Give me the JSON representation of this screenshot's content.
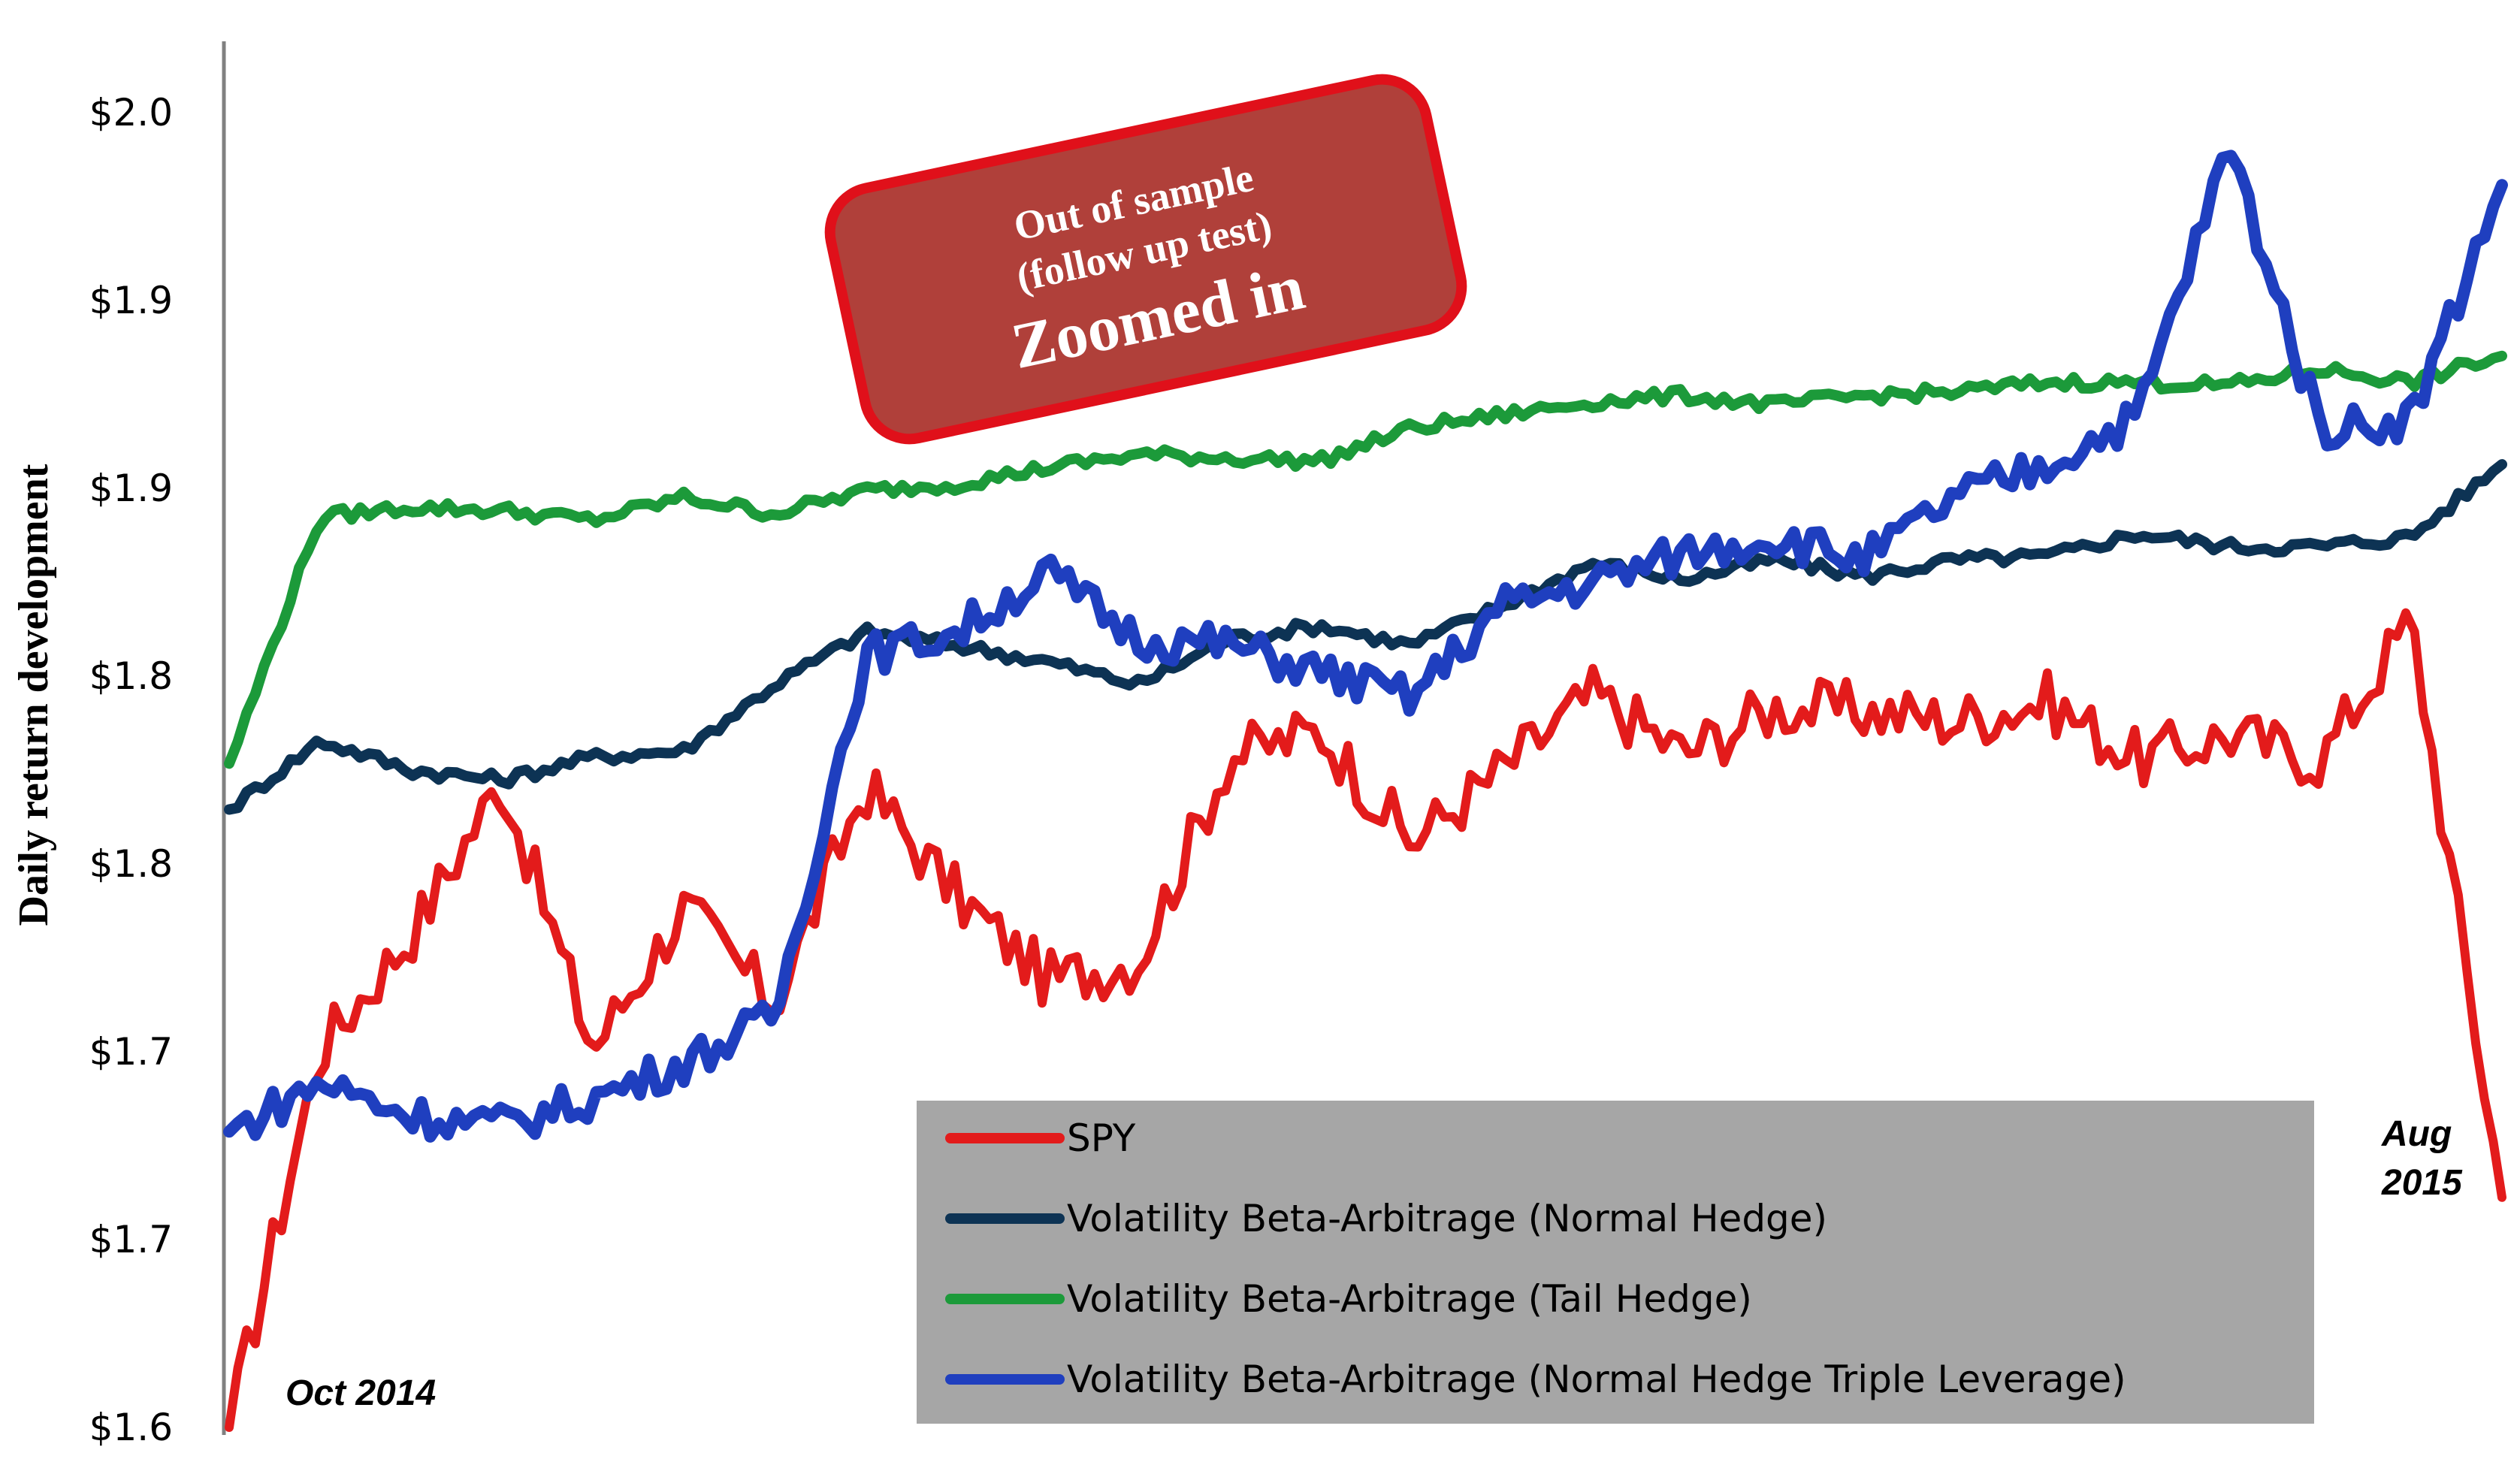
{
  "chart_data": {
    "type": "line",
    "title": "",
    "xlabel": "",
    "ylabel": "Daily return development",
    "y_tick_labels": [
      "$1.6",
      "$1.7",
      "$1.7",
      "$1.8",
      "$1.8",
      "$1.9",
      "$1.9",
      "$2.0"
    ],
    "x_start_label": "Oct 2014",
    "x_end_label_line1": "Aug",
    "x_end_label_line2": "2015",
    "x": [
      0,
      0.04,
      0.08,
      0.12,
      0.16,
      0.2,
      0.24,
      0.28,
      0.32,
      0.36,
      0.4,
      0.44,
      0.48,
      0.52,
      0.56,
      0.6,
      0.64,
      0.68,
      0.72,
      0.76,
      0.8,
      0.84,
      0.88,
      0.92,
      0.96,
      1.0
    ],
    "grid": false,
    "legend_position": "bottom-center",
    "series": [
      {
        "name": "SPY",
        "color": "#e31b1b",
        "values": [
          1.6,
          1.715,
          1.75,
          1.797,
          1.715,
          1.758,
          1.729,
          1.795,
          1.762,
          1.736,
          1.742,
          1.804,
          1.812,
          1.778,
          1.8,
          1.823,
          1.805,
          1.819,
          1.818,
          1.815,
          1.821,
          1.803,
          1.811,
          1.803,
          1.846,
          1.67
        ]
      },
      {
        "name": "Volatility Beta-Arbitrage (Normal Hedge)",
        "color": "#0d3354",
        "values": [
          1.788,
          1.809,
          1.8,
          1.797,
          1.804,
          1.806,
          1.826,
          1.842,
          1.838,
          1.833,
          1.826,
          1.84,
          1.844,
          1.838,
          1.85,
          1.863,
          1.858,
          1.864,
          1.859,
          1.864,
          1.865,
          1.872,
          1.868,
          1.868,
          1.871,
          1.893
        ]
      },
      {
        "name": "Volatility Beta-Arbitrage (Tail Hedge)",
        "color": "#1c9a3a",
        "values": [
          1.802,
          1.877,
          1.88,
          1.879,
          1.876,
          1.883,
          1.878,
          1.885,
          1.887,
          1.892,
          1.896,
          1.895,
          1.894,
          1.904,
          1.908,
          1.912,
          1.914,
          1.911,
          1.914,
          1.915,
          1.918,
          1.918,
          1.917,
          1.922,
          1.918,
          1.926
        ]
      },
      {
        "name": "Volatility Beta-Arbitrage (Normal Hedge Triple Leverage)",
        "color": "#1f3fbf",
        "values": [
          1.69,
          1.705,
          1.695,
          1.692,
          1.7,
          1.711,
          1.725,
          1.835,
          1.842,
          1.86,
          1.84,
          1.838,
          1.83,
          1.822,
          1.85,
          1.857,
          1.866,
          1.871,
          1.864,
          1.883,
          1.893,
          1.908,
          1.99,
          1.904,
          1.907,
          1.978
        ]
      }
    ]
  },
  "callout": {
    "line1": "Out of sample",
    "line2": "(follow up test)",
    "line3": "Zoomed in"
  },
  "colors": {
    "callout_fill": "#b0403a",
    "callout_border": "#e0101a",
    "legend_bg": "#a6a6a6",
    "axis": "#808080"
  }
}
